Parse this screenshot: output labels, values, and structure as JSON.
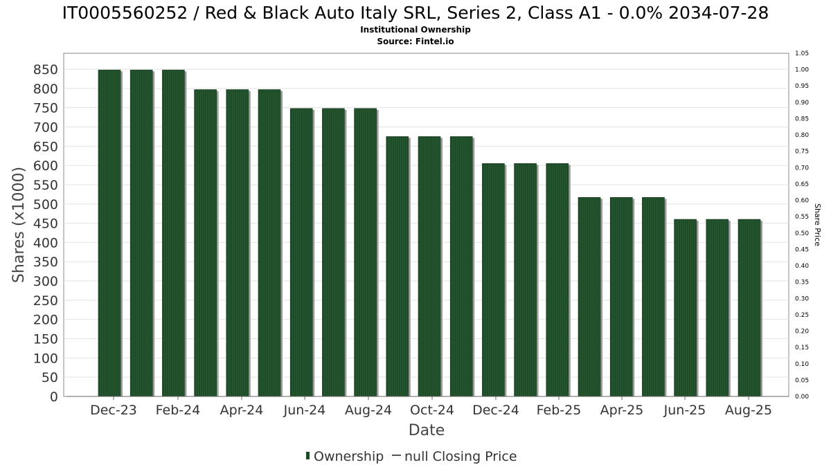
{
  "chart_data": {
    "type": "bar",
    "title": "IT0005560252 / Red & Black Auto Italy SRL, Series 2, Class A1 - 0.0% 2034-07-28",
    "subtitle_lines": [
      "Institutional Ownership",
      "Source: Fintel.io"
    ],
    "xlabel": "Date",
    "ylabel": "Shares (x1000)",
    "y2label": "Share Price",
    "ylim": [
      0,
      880
    ],
    "y_ticks": [
      "0",
      "50",
      "100",
      "150",
      "200",
      "250",
      "300",
      "350",
      "400",
      "450",
      "500",
      "550",
      "600",
      "650",
      "700",
      "750",
      "800",
      "850"
    ],
    "y2lim": [
      0,
      1.05
    ],
    "y2_ticks": [
      "0.00",
      "0.05",
      "0.10",
      "0.15",
      "0.20",
      "0.25",
      "0.30",
      "0.35",
      "0.40",
      "0.45",
      "0.50",
      "0.55",
      "0.60",
      "0.65",
      "0.70",
      "0.75",
      "0.80",
      "0.85",
      "0.90",
      "0.95",
      "1.00",
      "1.05"
    ],
    "x_tick_labels": [
      "Dec-23",
      "Feb-24",
      "Apr-24",
      "Jun-24",
      "Aug-24",
      "Oct-24",
      "Dec-24",
      "Feb-25",
      "Apr-25",
      "Jun-25",
      "Aug-25"
    ],
    "grid": true,
    "legend_position": "bottom",
    "series": [
      {
        "name": "Ownership",
        "color": "#1e4a28",
        "values": [
          848,
          848,
          848,
          797,
          797,
          797,
          748,
          748,
          748,
          675,
          675,
          675,
          605,
          605,
          605,
          517,
          517,
          517,
          460,
          460,
          460
        ]
      }
    ],
    "legend": [
      {
        "label": "Ownership",
        "symbol": "bar",
        "color": "#1e4a28"
      },
      {
        "label": "null Closing Price",
        "symbol": "line",
        "color": "#555555"
      }
    ]
  }
}
